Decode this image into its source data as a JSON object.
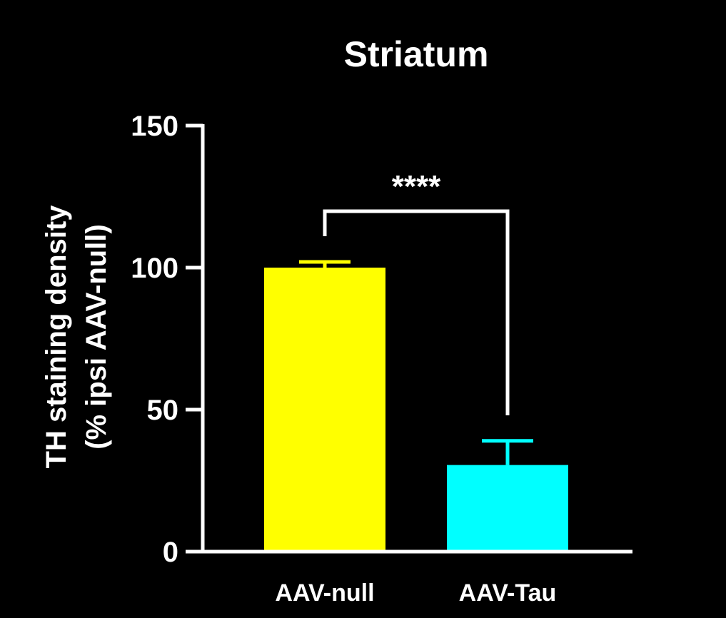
{
  "chart_data": {
    "type": "bar",
    "title": "Striatum",
    "ylabel_line1": "TH staining density",
    "ylabel_line2": "(% ipsi AAV-null)",
    "categories": [
      "AAV-null",
      "AAV-Tau"
    ],
    "values": [
      100,
      30.5
    ],
    "errors": [
      2,
      8.5
    ],
    "bar_colors": [
      "#ffff00",
      "#00ffff"
    ],
    "ylim": [
      0,
      150
    ],
    "yticks": [
      0,
      50,
      100,
      150
    ],
    "ytick_labels": [
      "0",
      "50",
      "100",
      "150"
    ],
    "significance": {
      "label": "****",
      "between": [
        0,
        1
      ]
    },
    "grid": false,
    "legend": "none"
  },
  "colors": {
    "background": "#000000",
    "axis": "#ffffff",
    "text": "#ffffff"
  }
}
